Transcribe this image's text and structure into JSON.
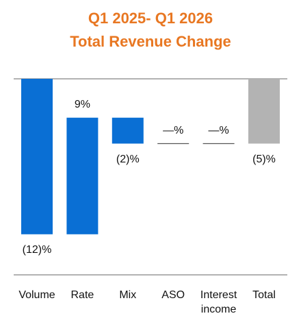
{
  "chart_data": {
    "type": "waterfall",
    "title": "Q1 2025- Q1 2026",
    "subtitle": "Total Revenue Change",
    "categories": [
      "Volume",
      "Rate",
      "Mix",
      "ASO",
      "Interest income",
      "Total"
    ],
    "values": [
      -12,
      9,
      -2,
      0,
      0,
      -5
    ],
    "value_labels": [
      "(12)%",
      "9%",
      "(2)%",
      "—%",
      "—%",
      "(5)%"
    ],
    "color": "#0a6fd4",
    "total_color": "#b3b3b3"
  }
}
